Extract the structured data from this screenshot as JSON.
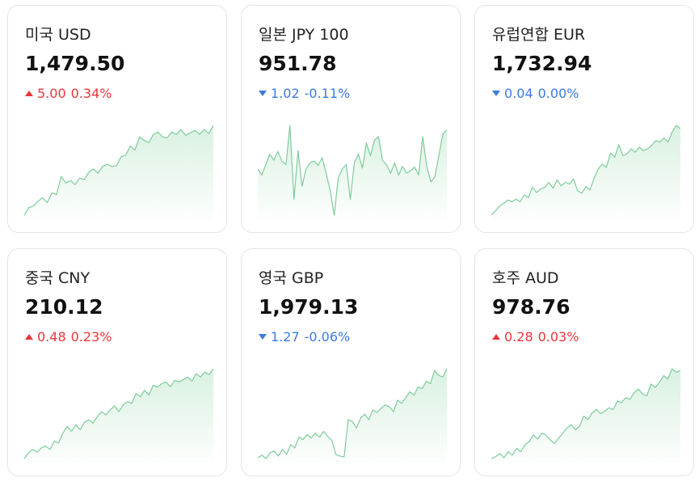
{
  "colors": {
    "up": "#e8353a",
    "down": "#3b7be0",
    "line": "#7fcc9c",
    "fill": "#d7f0df"
  },
  "cards": [
    {
      "name": "미국 USD",
      "price": "1,479.50",
      "direction": "up",
      "change": "5.00",
      "percent": "0.34%",
      "trend": [
        1,
        10,
        12,
        18,
        22,
        16,
        28,
        26,
        48,
        40,
        43,
        38,
        46,
        44,
        53,
        57,
        52,
        60,
        63,
        60,
        61,
        72,
        74,
        85,
        80,
        96,
        92,
        89,
        99,
        102,
        96,
        95,
        102,
        99,
        105,
        98,
        101,
        104,
        99,
        105,
        100,
        110
      ]
    },
    {
      "name": "일본 JPY 100",
      "price": "951.78",
      "direction": "down",
      "change": "1.02",
      "percent": "-0.11%",
      "trend": [
        55,
        48,
        60,
        72,
        65,
        75,
        64,
        60,
        105,
        20,
        76,
        35,
        55,
        62,
        64,
        59,
        68,
        50,
        30,
        2,
        45,
        55,
        60,
        20,
        62,
        72,
        56,
        85,
        70,
        88,
        92,
        65,
        60,
        50,
        62,
        48,
        58,
        50,
        53,
        57,
        48,
        92,
        58,
        40,
        46,
        70,
        95,
        100
      ]
    },
    {
      "name": "유럽연합 EUR",
      "price": "1,732.94",
      "direction": "down",
      "change": "0.04",
      "percent": "0.00%",
      "trend": [
        1,
        6,
        12,
        15,
        19,
        17,
        20,
        17,
        25,
        22,
        34,
        28,
        32,
        34,
        40,
        33,
        43,
        36,
        40,
        38,
        44,
        30,
        27,
        35,
        31,
        45,
        56,
        62,
        58,
        75,
        70,
        85,
        72,
        74,
        80,
        76,
        82,
        78,
        80,
        84,
        90,
        88,
        93,
        88,
        100,
        108,
        104
      ]
    },
    {
      "name": "중국 CNY",
      "price": "210.12",
      "direction": "up",
      "change": "0.48",
      "percent": "0.23%",
      "trend": [
        1,
        8,
        12,
        9,
        14,
        16,
        12,
        22,
        20,
        32,
        40,
        34,
        42,
        36,
        45,
        48,
        44,
        52,
        58,
        54,
        60,
        65,
        58,
        66,
        70,
        68,
        80,
        76,
        84,
        78,
        90,
        88,
        92,
        94,
        88,
        96,
        94,
        97,
        100,
        95,
        104,
        100,
        106,
        103,
        110
      ]
    },
    {
      "name": "영국 GBP",
      "price": "1,979.13",
      "direction": "down",
      "change": "1.27",
      "percent": "-0.06%",
      "trend": [
        2,
        5,
        1,
        8,
        10,
        4,
        12,
        6,
        18,
        14,
        27,
        24,
        30,
        26,
        32,
        27,
        34,
        28,
        23,
        6,
        4,
        3,
        48,
        46,
        38,
        50,
        55,
        48,
        60,
        57,
        62,
        66,
        64,
        58,
        72,
        68,
        75,
        82,
        78,
        88,
        86,
        95,
        92,
        108,
        102,
        100,
        110
      ]
    },
    {
      "name": "호주 AUD",
      "price": "978.76",
      "direction": "up",
      "change": "0.28",
      "percent": "0.03%",
      "trend": [
        2,
        4,
        8,
        3,
        10,
        6,
        14,
        10,
        18,
        22,
        30,
        25,
        32,
        30,
        24,
        20,
        26,
        32,
        38,
        42,
        36,
        40,
        52,
        48,
        56,
        60,
        55,
        58,
        62,
        60,
        70,
        68,
        74,
        72,
        80,
        84,
        78,
        76,
        90,
        86,
        92,
        100,
        96,
        108,
        104,
        106
      ]
    }
  ]
}
